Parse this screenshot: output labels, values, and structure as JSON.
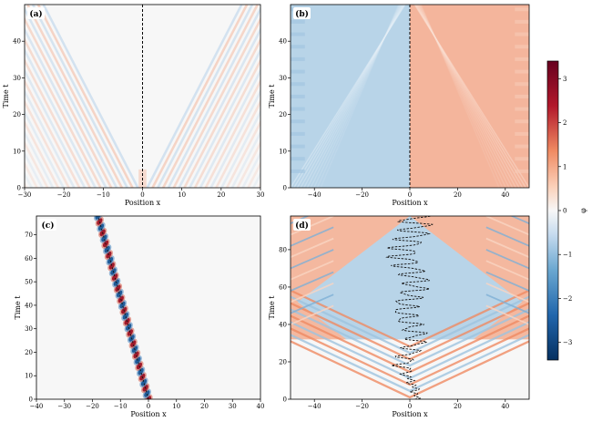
{
  "chart_data": [
    {
      "type": "heatmap",
      "panel_label": "(a)",
      "xlabel": "Position x",
      "ylabel": "Time t",
      "xlim": [
        -30,
        30
      ],
      "ylim": [
        0,
        50
      ],
      "xticks": [
        -30,
        -20,
        -10,
        0,
        10,
        20,
        30
      ],
      "yticks": [
        0,
        10,
        20,
        30,
        40
      ],
      "dashed_vline_x": 0,
      "pattern": "faint V-shaped radiation wave fronts emanating from x=0, t=0"
    },
    {
      "type": "heatmap",
      "panel_label": "(b)",
      "xlabel": "Position x",
      "ylabel": "Time t",
      "xlim": [
        -50,
        50
      ],
      "ylim": [
        0,
        50
      ],
      "xticks": [
        -40,
        -20,
        0,
        20,
        40
      ],
      "yticks": [
        0,
        10,
        20,
        30,
        40
      ],
      "dashed_vline_x": 0,
      "pattern": "phi approx -1 for x<0 and approx +1 for x>0 with oblique ripples"
    },
    {
      "type": "heatmap",
      "panel_label": "(c)",
      "xlabel": "Position x",
      "ylabel": "Time t",
      "xlim": [
        -40,
        40
      ],
      "ylim": [
        0,
        78
      ],
      "xticks": [
        -40,
        -30,
        -20,
        -10,
        0,
        10,
        20,
        30,
        40
      ],
      "yticks": [
        0,
        10,
        20,
        30,
        40,
        50,
        60,
        70
      ],
      "pattern": "oscillating localized lump drifting from x=0 at t=0 to x=-18 at t=78",
      "trajectory": {
        "t": [
          0,
          78
        ],
        "x": [
          0,
          -18
        ]
      }
    },
    {
      "type": "heatmap",
      "panel_label": "(d)",
      "xlabel": "Position x",
      "ylabel": "Time t",
      "xlim": [
        -50,
        50
      ],
      "ylim": [
        0,
        98
      ],
      "xticks": [
        -40,
        -20,
        0,
        20,
        40
      ],
      "yticks": [
        0,
        20,
        40,
        60,
        80
      ],
      "pattern": "diamond region of phi approx -1 bounded by positive stripes, wandering dashed trajectory near x=0"
    }
  ],
  "colorbar": {
    "label": "φ",
    "min": -3.4,
    "max": 3.4,
    "ticks": [
      -3,
      -2,
      -1,
      0,
      1,
      2,
      3
    ],
    "tick_labels": [
      "−3",
      "−2",
      "−1",
      "0",
      "1",
      "2",
      "3"
    ],
    "colormap": "RdBu_r"
  },
  "colors": {
    "neg_light": "#b8d4e8",
    "pos_light": "#f4b59c",
    "neg_dark": "#1f5c99",
    "pos_dark": "#a11a2b",
    "neutral": "#f7f7f7"
  }
}
